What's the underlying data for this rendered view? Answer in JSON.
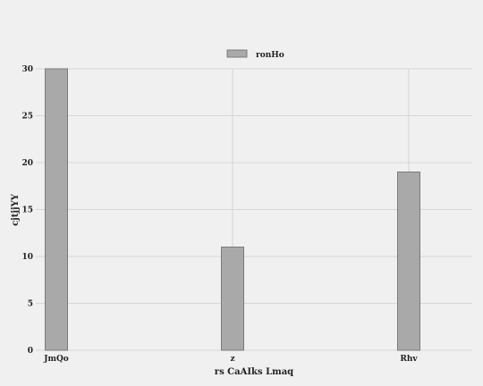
{
  "chart_data": {
    "type": "bar",
    "categories": [
      "JmQo",
      "z",
      "Rhv"
    ],
    "series": [
      {
        "name": "ronHo",
        "values": [
          30,
          11,
          19
        ],
        "color": "#a9a9a9",
        "edge_color": "#7a7a7a"
      }
    ],
    "xlabel": "rs CaAIks Lmaq",
    "ylabel": "cjtjjYY",
    "ylim": [
      0,
      30
    ],
    "yticks": [
      0,
      5,
      10,
      15,
      20,
      25,
      30
    ],
    "grid": true,
    "legend_position": "top-center",
    "background": "#f0f0f0",
    "grid_color": "#cfcfcf"
  }
}
